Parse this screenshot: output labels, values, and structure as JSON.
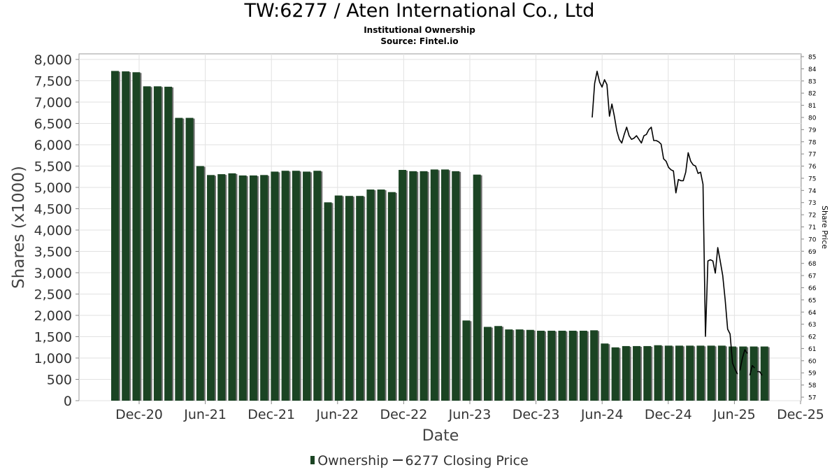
{
  "chart_data": {
    "type": "bar",
    "title": "TW:6277 / Aten International Co., Ltd",
    "subtitle": "Institutional Ownership",
    "source": "Source: Fintel.io",
    "xlabel": "Date",
    "ylabel": "Shares (x1000)",
    "ylabel_right": "Share Price",
    "ylim": [
      0,
      8000
    ],
    "ylim_right": [
      57,
      85
    ],
    "y_ticks": [
      "0",
      "500",
      "1,000",
      "1,500",
      "2,000",
      "2,500",
      "3,000",
      "3,500",
      "4,000",
      "4,500",
      "5,000",
      "5,500",
      "6,000",
      "6,500",
      "7,000",
      "7,500",
      "8,000"
    ],
    "y_ticks_right": [
      "57",
      "58",
      "59",
      "60",
      "61",
      "62",
      "63",
      "64",
      "65",
      "66",
      "67",
      "68",
      "69",
      "70",
      "71",
      "72",
      "73",
      "74",
      "75",
      "76",
      "77",
      "78",
      "79",
      "80",
      "81",
      "82",
      "83",
      "84",
      "85"
    ],
    "x_ticks": [
      "Dec-20",
      "Jun-21",
      "Dec-21",
      "Jun-22",
      "Dec-22",
      "Jun-23",
      "Dec-23",
      "Jun-24",
      "Dec-24",
      "Jun-25",
      "Dec-25"
    ],
    "legend_position": "bottom",
    "series": [
      {
        "name": "Ownership",
        "kind": "bar",
        "color": "#1b4423",
        "values": [
          7730,
          7720,
          7700,
          7370,
          7370,
          7360,
          6630,
          6630,
          5500,
          5290,
          5310,
          5330,
          5280,
          5280,
          5290,
          5370,
          5390,
          5390,
          5370,
          5390,
          4650,
          4810,
          4800,
          4800,
          4950,
          4950,
          4890,
          5410,
          5380,
          5380,
          5420,
          5420,
          5380,
          1880,
          5300,
          1730,
          1750,
          1670,
          1670,
          1660,
          1640,
          1640,
          1640,
          1640,
          1640,
          1650,
          1340,
          1250,
          1280,
          1280,
          1280,
          1300,
          1290,
          1290,
          1290,
          1290,
          1290,
          1290,
          1270,
          1270,
          1270,
          1270
        ]
      },
      {
        "name": "6277 Closing Price",
        "kind": "line",
        "color": "#000000",
        "segments": [
          [
            [
              0,
              80.0
            ],
            [
              2,
              82.8
            ],
            [
              4,
              83.8
            ],
            [
              6,
              82.9
            ],
            [
              8,
              82.5
            ],
            [
              10,
              83.1
            ],
            [
              12,
              82.7
            ],
            [
              14,
              80.1
            ],
            [
              16,
              81.1
            ],
            [
              18,
              80.1
            ],
            [
              20,
              78.9
            ],
            [
              22,
              78.2
            ],
            [
              24,
              77.9
            ],
            [
              26,
              78.6
            ],
            [
              28,
              79.2
            ],
            [
              30,
              78.5
            ],
            [
              32,
              78.2
            ],
            [
              34,
              78.3
            ],
            [
              36,
              78.5
            ],
            [
              38,
              78.2
            ],
            [
              40,
              77.9
            ],
            [
              42,
              78.5
            ],
            [
              44,
              78.6
            ],
            [
              46,
              79.0
            ],
            [
              48,
              79.2
            ],
            [
              50,
              78.1
            ],
            [
              52,
              78.1
            ],
            [
              54,
              78.0
            ],
            [
              56,
              77.8
            ],
            [
              58,
              76.6
            ],
            [
              60,
              76.4
            ],
            [
              62,
              75.9
            ],
            [
              64,
              75.7
            ],
            [
              66,
              75.6
            ],
            [
              68,
              73.8
            ],
            [
              70,
              74.9
            ],
            [
              72,
              74.8
            ],
            [
              74,
              74.8
            ],
            [
              76,
              75.5
            ],
            [
              78,
              77.1
            ],
            [
              80,
              76.4
            ],
            [
              82,
              76.1
            ],
            [
              84,
              76.0
            ],
            [
              86,
              75.4
            ],
            [
              88,
              75.5
            ],
            [
              90,
              74.5
            ],
            [
              92,
              62.0
            ],
            [
              94,
              68.2
            ],
            [
              96,
              68.3
            ],
            [
              98,
              68.2
            ],
            [
              100,
              67.2
            ],
            [
              102,
              69.3
            ],
            [
              104,
              68.2
            ],
            [
              106,
              67.0
            ],
            [
              108,
              65.0
            ],
            [
              110,
              62.6
            ],
            [
              112,
              62.2
            ],
            [
              114,
              59.8
            ],
            [
              116,
              59.3
            ],
            [
              118,
              58.9
            ]
          ],
          [
            [
              120,
              59.2
            ],
            [
              122,
              60.2
            ],
            [
              124,
              60.9
            ],
            [
              126,
              60.6
            ]
          ],
          [
            [
              128,
              58.8
            ],
            [
              130,
              59.6
            ],
            [
              132,
              59.4
            ]
          ],
          [
            [
              134,
              59.1
            ],
            [
              136,
              59.1
            ],
            [
              138,
              58.8
            ]
          ]
        ]
      }
    ]
  }
}
